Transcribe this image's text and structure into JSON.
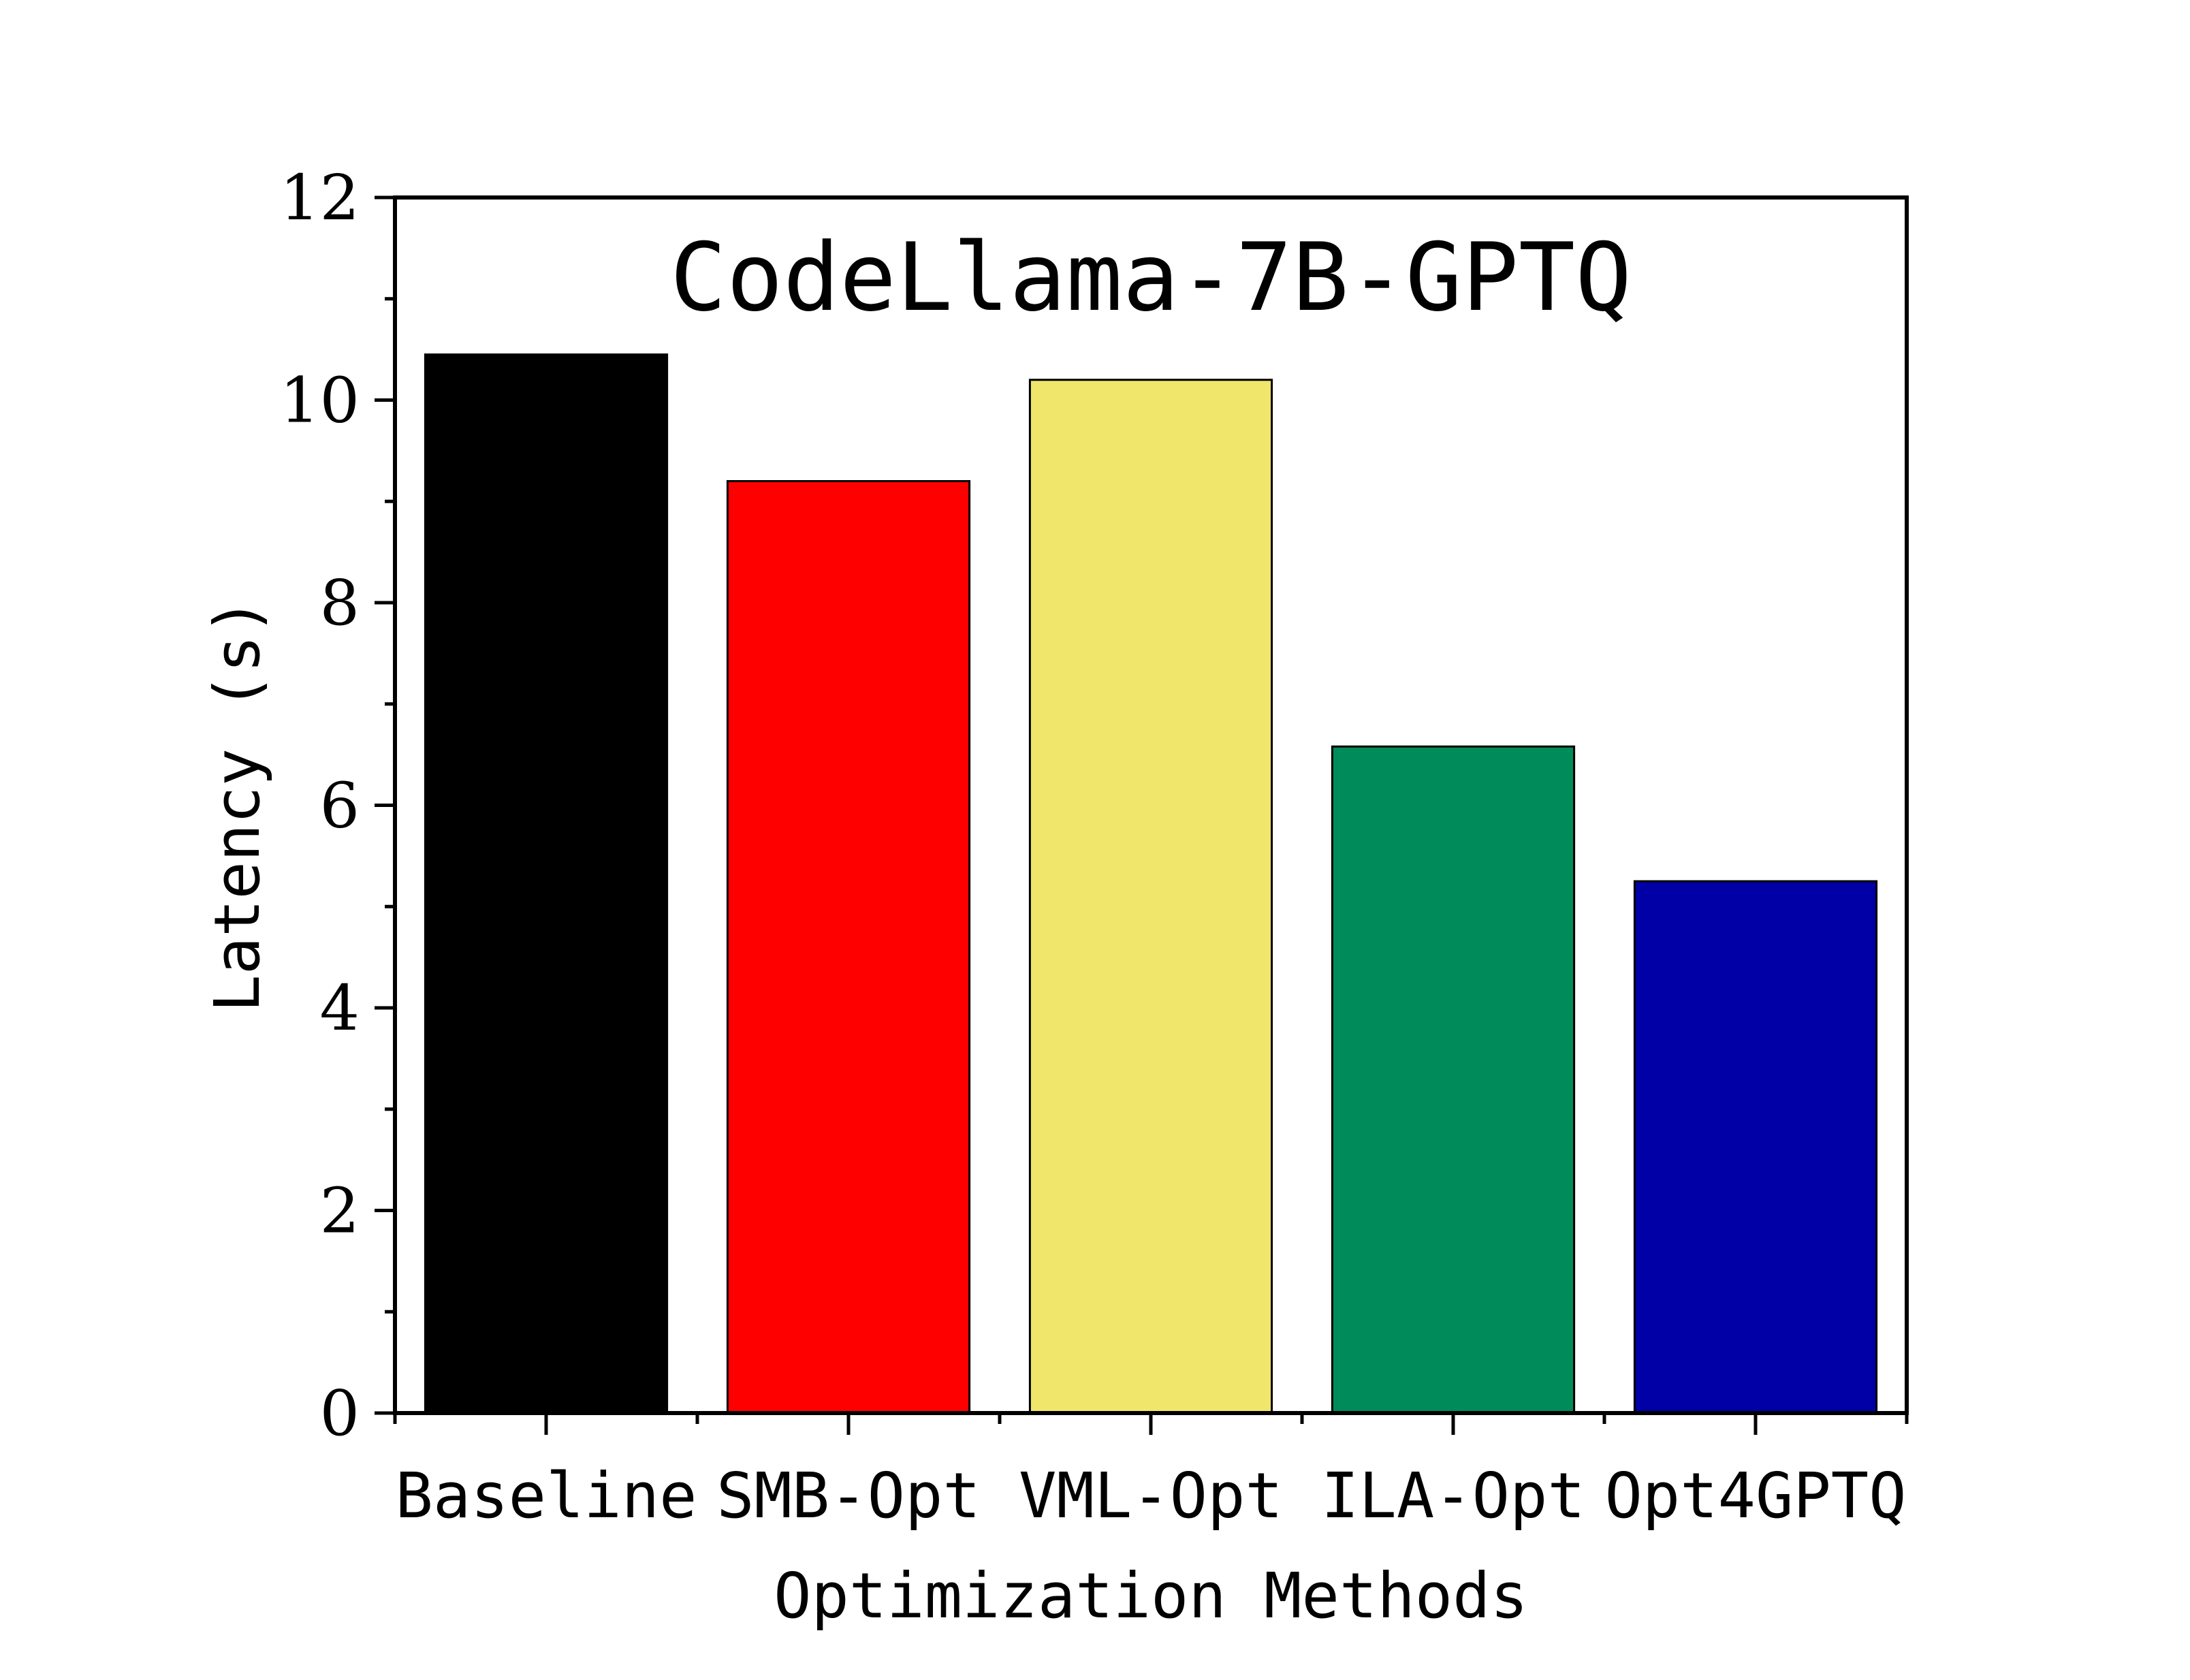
{
  "chart_data": {
    "type": "bar",
    "title": "CodeLlama-7B-GPTQ",
    "xlabel": "Optimization Methods",
    "ylabel": "Latency (s)",
    "categories": [
      "Baseline",
      "SMB-Opt",
      "VML-Opt",
      "ILA-Opt",
      "Opt4GPTQ"
    ],
    "values": [
      10.45,
      9.2,
      10.2,
      6.58,
      5.25
    ],
    "colors": [
      "#000000",
      "#fe0000",
      "#efe66b",
      "#008c5a",
      "#0000a6"
    ],
    "ylim": [
      0,
      12
    ],
    "yticks": [
      "0",
      "2",
      "4",
      "6",
      "8",
      "10",
      "12"
    ],
    "grid": false,
    "legend": "none"
  }
}
